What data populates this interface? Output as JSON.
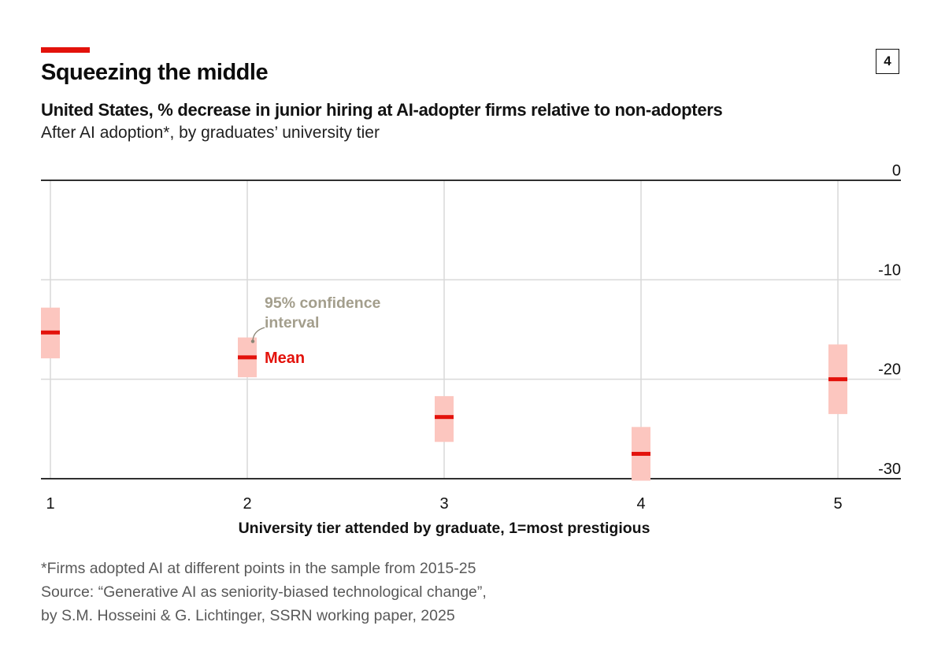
{
  "header": {
    "title": "Squeezing the middle",
    "subtitle": "United States, % decrease in junior hiring at AI-adopter firms relative to non-adopters",
    "subtitle2": "After AI adoption*, by graduates’ university tier",
    "badge": "4"
  },
  "chart_data": {
    "type": "scatter",
    "title": "Squeezing the middle",
    "xlabel": "University tier attended by graduate, 1=most prestigious",
    "ylabel": "",
    "categories": [
      "1",
      "2",
      "3",
      "4",
      "5"
    ],
    "series": [
      {
        "name": "Mean",
        "values": [
          -15.3,
          -17.8,
          -23.8,
          -27.5,
          -20.0
        ]
      },
      {
        "name": "95% confidence interval low",
        "values": [
          -17.9,
          -19.8,
          -26.3,
          -30.2,
          -23.5
        ]
      },
      {
        "name": "95% confidence interval high",
        "values": [
          -12.8,
          -15.8,
          -21.7,
          -24.8,
          -16.5
        ]
      }
    ],
    "ylim": [
      -30,
      0
    ],
    "yticks": [
      0,
      -10,
      -20,
      -30
    ],
    "ytick_labels": [
      "0",
      "-10",
      "-20",
      "-30"
    ],
    "annotations": {
      "ci_label_line1": "95% confidence",
      "ci_label_line2": "interval",
      "mean_label": "Mean"
    },
    "colors": {
      "mean": "#e3120b",
      "ci": "#fcc6bf",
      "ci_label": "#a39e8c",
      "grid": "#d9d9d9",
      "axis": "#121212"
    }
  },
  "footer": {
    "note": "*Firms adopted AI at different points in the sample from 2015-25",
    "source1": "Source: “Generative AI as seniority-biased technological change”,",
    "source2": "by S.M. Hosseini & G. Lichtinger, SSRN working paper, 2025"
  }
}
